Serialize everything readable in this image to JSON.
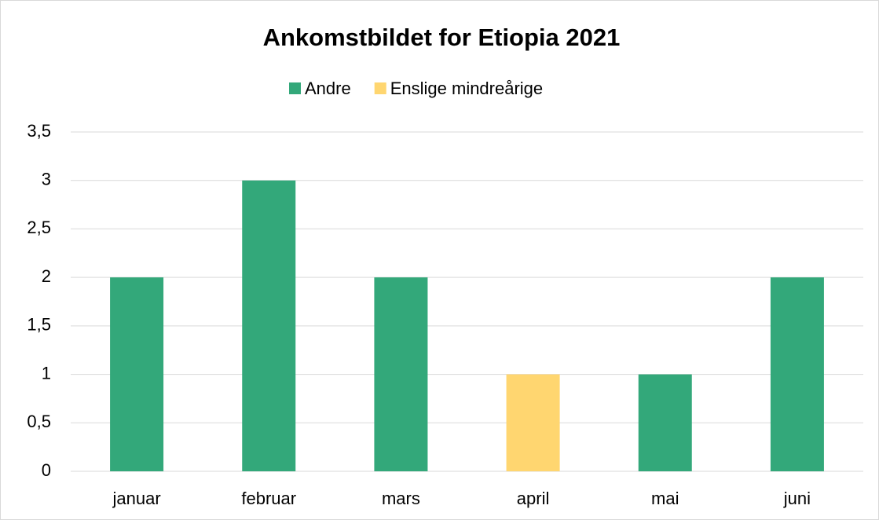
{
  "chart_data": {
    "type": "stacked_bar",
    "title": "Ankomstbildet for Etiopia 2021",
    "categories": [
      "januar",
      "februar",
      "mars",
      "april",
      "mai",
      "juni"
    ],
    "series": [
      {
        "name": "Andre",
        "color": "#33a87a",
        "values": [
          2,
          3,
          2,
          0,
          1,
          2
        ]
      },
      {
        "name": "Enslige mindreårige",
        "color": "#ffd670",
        "values": [
          0,
          0,
          0,
          1,
          0,
          0
        ]
      }
    ],
    "ylim": [
      0,
      3.5
    ],
    "yticks": [
      0,
      {
        "value": 0.5,
        "label": "0,5"
      },
      1,
      {
        "value": 1.5,
        "label": "1,5"
      },
      2,
      {
        "value": 2.5,
        "label": "2,5"
      },
      3,
      {
        "value": 3.5,
        "label": "3,5"
      }
    ],
    "grid": true,
    "legend": "top"
  }
}
